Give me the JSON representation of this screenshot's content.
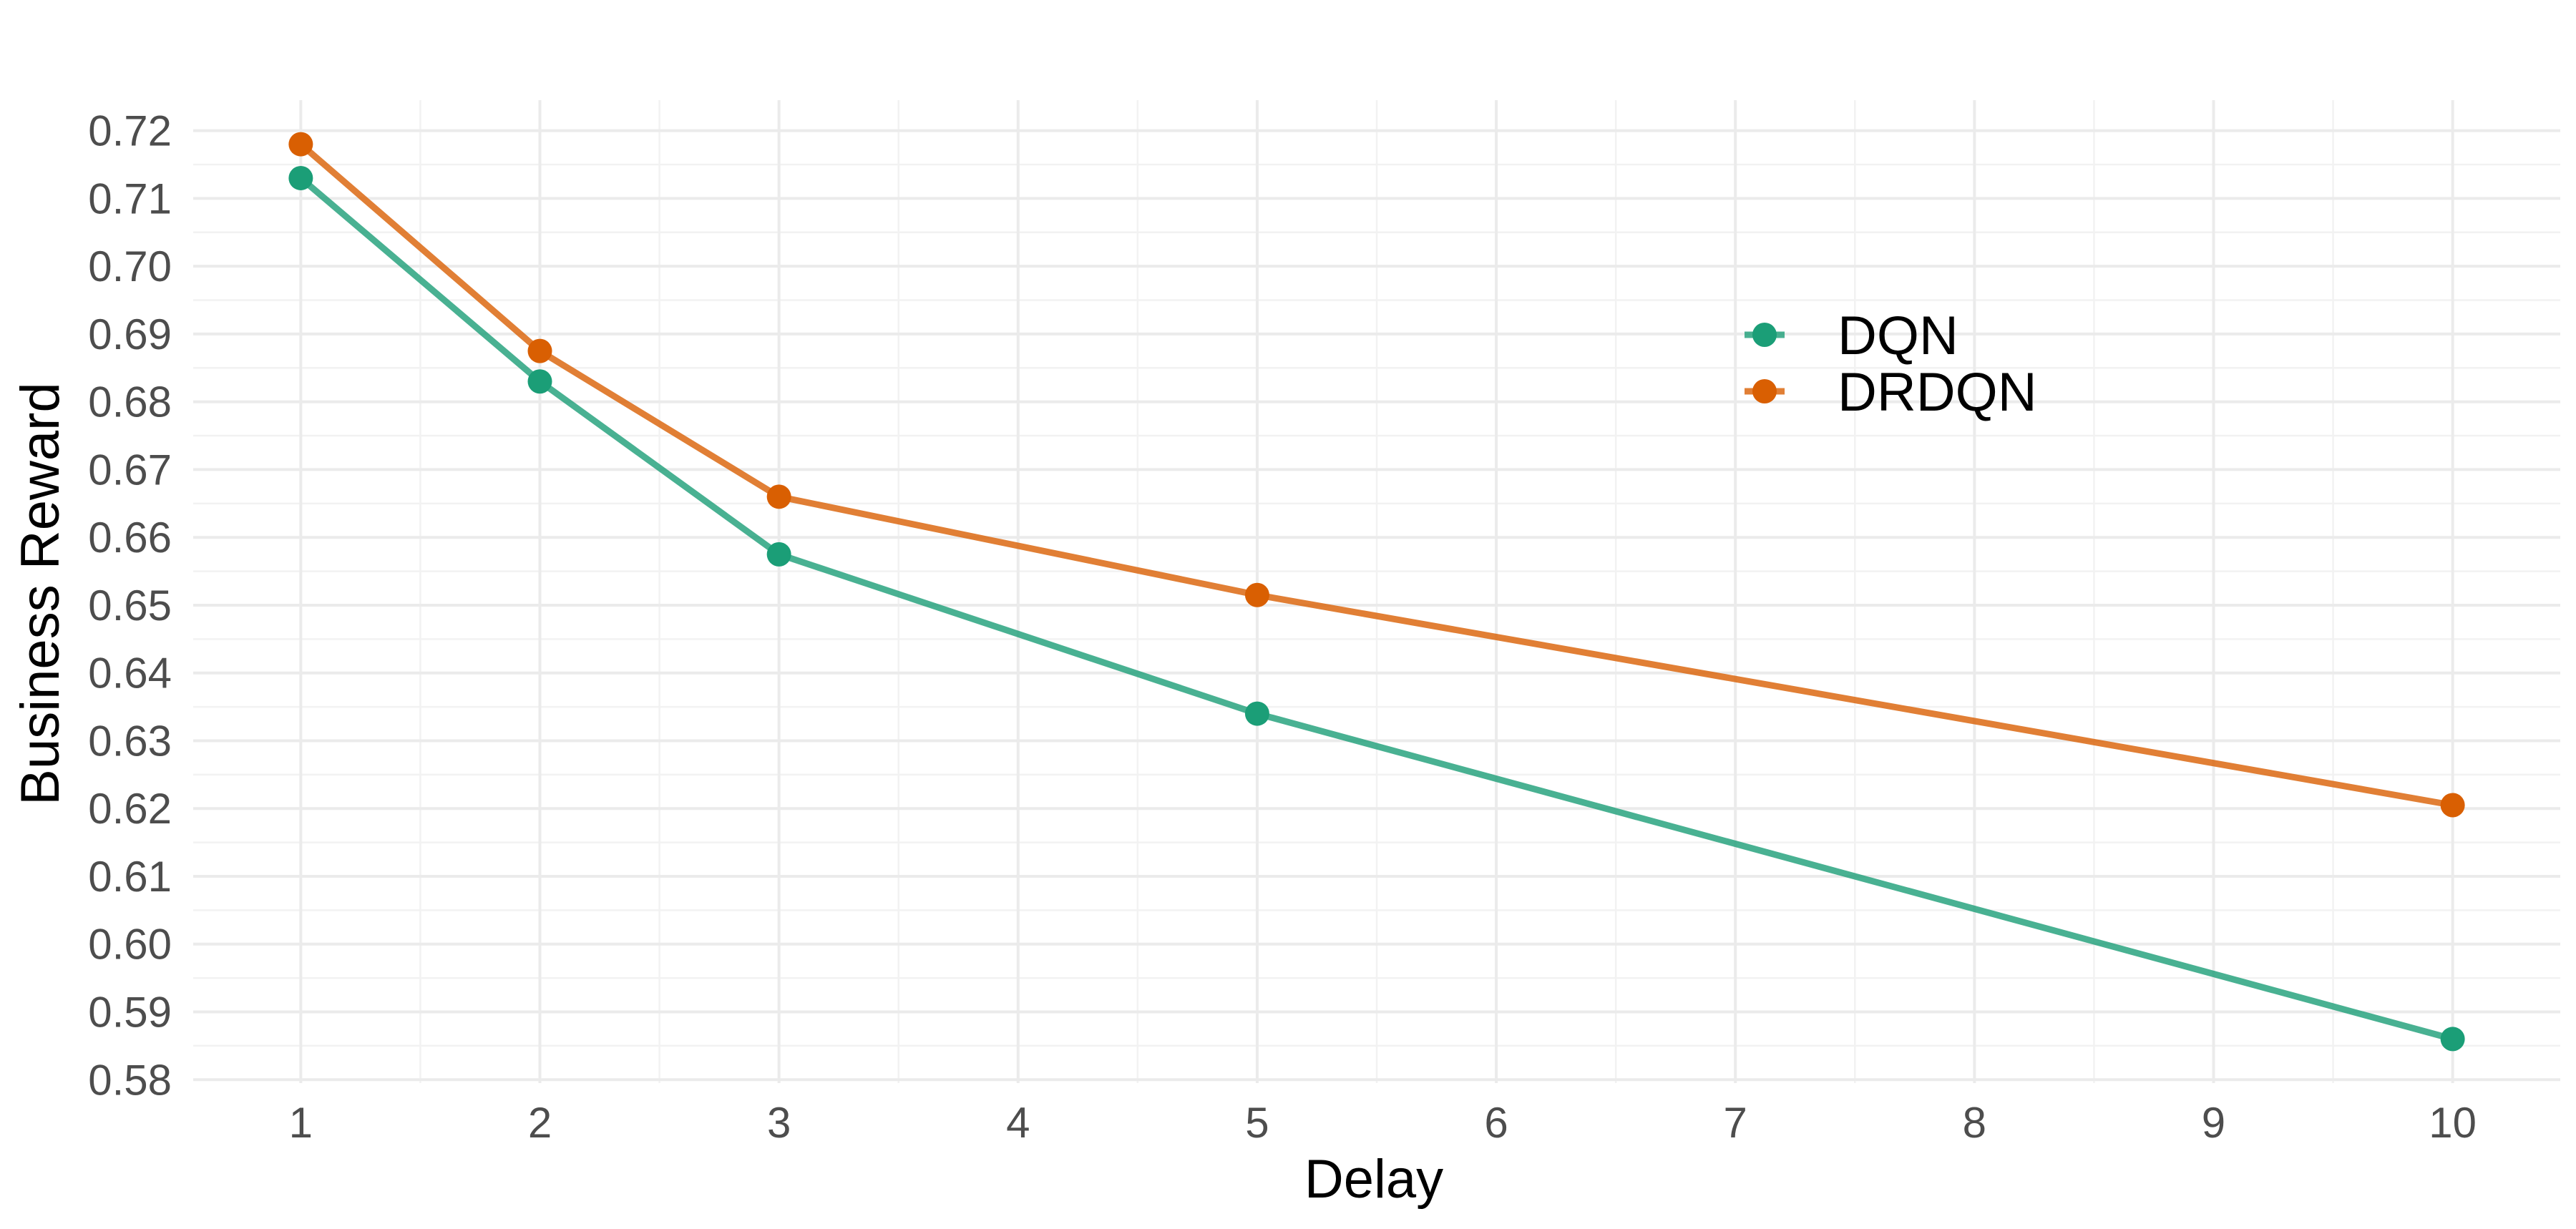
{
  "chart_data": {
    "type": "line",
    "title": "",
    "xlabel": "Delay",
    "ylabel": "Business Reward",
    "x": [
      1,
      2,
      3,
      5,
      10
    ],
    "x_ticks": [
      1,
      2,
      3,
      4,
      5,
      6,
      7,
      8,
      9,
      10
    ],
    "x_tick_labels": [
      "1",
      "2",
      "3",
      "4",
      "5",
      "6",
      "7",
      "8",
      "9",
      "10"
    ],
    "xlim": [
      0.55,
      10.45
    ],
    "y_ticks": [
      0.58,
      0.59,
      0.6,
      0.61,
      0.62,
      0.63,
      0.64,
      0.65,
      0.66,
      0.67,
      0.68,
      0.69,
      0.7,
      0.71,
      0.72
    ],
    "y_tick_labels": [
      "0.58",
      "0.59",
      "0.60",
      "0.61",
      "0.62",
      "0.63",
      "0.64",
      "0.65",
      "0.66",
      "0.67",
      "0.68",
      "0.69",
      "0.70",
      "0.71",
      "0.72"
    ],
    "ylim": [
      0.5795,
      0.7245
    ],
    "grid": true,
    "legend_position": "upper-right-inside",
    "series": [
      {
        "name": "DQN",
        "color": "#1B9E77",
        "values": [
          0.713,
          0.683,
          0.6575,
          0.634,
          0.586
        ]
      },
      {
        "name": "DRDQN",
        "color": "#D95F02",
        "values": [
          0.718,
          0.6875,
          0.666,
          0.6515,
          0.6205
        ]
      }
    ]
  }
}
